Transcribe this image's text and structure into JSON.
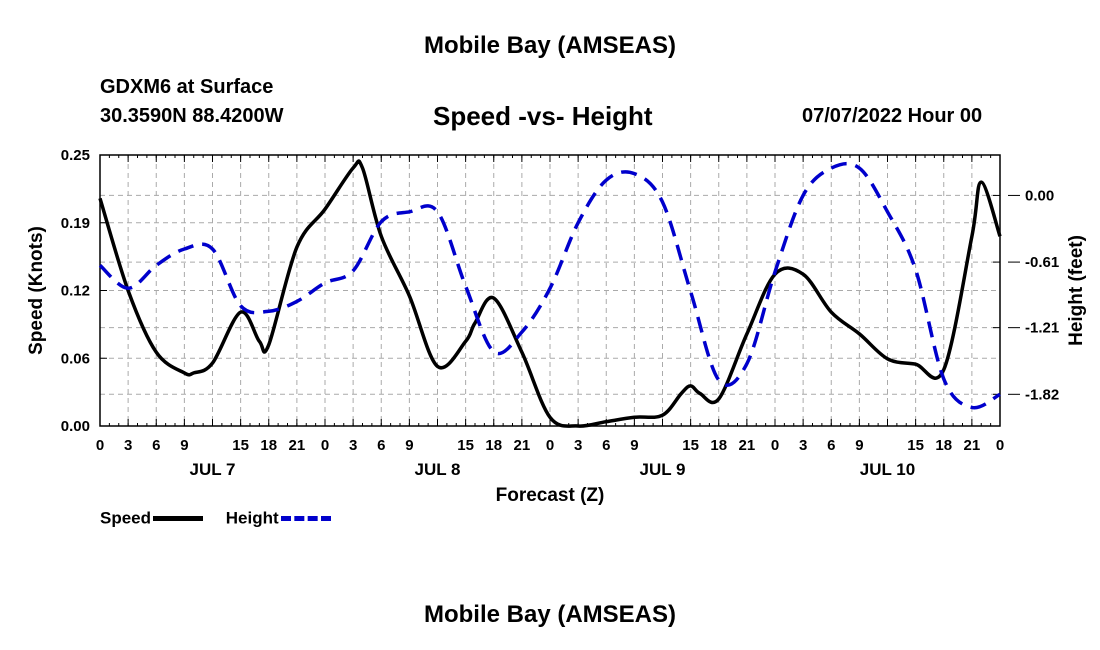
{
  "header": {
    "title": "Mobile Bay (AMSEAS)",
    "station": "GDXM6 at Surface",
    "coords": "30.3590N  88.4200W",
    "subtitle": "Speed -vs- Height",
    "datetime": "07/07/2022 Hour 00",
    "footer_title": "Mobile Bay (AMSEAS)"
  },
  "legend": {
    "items": [
      {
        "label": "Speed",
        "color": "#000000",
        "style": "solid"
      },
      {
        "label": "Height",
        "color": "#0000cc",
        "style": "dashed"
      }
    ]
  },
  "chart_data": {
    "type": "line",
    "title": "Speed -vs- Height",
    "xlabel": "Forecast (Z)",
    "ylabel": "Speed (Knots)",
    "y2label": "Height (feet)",
    "x_unit": "hours from 07/07/2022 00Z",
    "xlim": [
      0,
      96
    ],
    "x_ticks": [
      0,
      3,
      6,
      9,
      12,
      15,
      18,
      21,
      24,
      27,
      30,
      33,
      36,
      39,
      42,
      45,
      48,
      51,
      54,
      57,
      60,
      63,
      66,
      69,
      72,
      75,
      78,
      81,
      84,
      87,
      90,
      93,
      96
    ],
    "x_tick_labels": [
      "0",
      "3",
      "6",
      "9",
      "15",
      "18",
      "21",
      "0",
      "3",
      "6",
      "9",
      "15",
      "18",
      "21",
      "0",
      "3",
      "6",
      "9",
      "15",
      "18",
      "21",
      "0",
      "3",
      "6",
      "9",
      "15",
      "18",
      "21",
      "0"
    ],
    "x_tick_label_positions": [
      0,
      3,
      6,
      9,
      15,
      18,
      21,
      24,
      27,
      30,
      33,
      39,
      42,
      45,
      48,
      51,
      54,
      57,
      63,
      66,
      69,
      72,
      75,
      78,
      81,
      87,
      90,
      93,
      96
    ],
    "day_labels": [
      {
        "label": "JUL 7",
        "x": 12
      },
      {
        "label": "JUL 8",
        "x": 36
      },
      {
        "label": "JUL 9",
        "x": 60
      },
      {
        "label": "JUL 10",
        "x": 84
      }
    ],
    "ylim": [
      0,
      0.25
    ],
    "y_ticks": [
      "0.00",
      "0.06",
      "0.12",
      "0.19",
      "0.25"
    ],
    "y_tick_values": [
      0,
      0.0625,
      0.125,
      0.1875,
      0.25
    ],
    "y2lim": [
      -2.11,
      0.37
    ],
    "y2_ticks": [
      "0.00",
      "-0.61",
      "-1.21",
      "-1.82"
    ],
    "y2_tick_values": [
      0.0,
      -0.61,
      -1.21,
      -1.82
    ],
    "grid": true,
    "series": [
      {
        "name": "Speed",
        "axis": "left",
        "color": "#000000",
        "dash": "solid",
        "x": [
          0,
          3,
          6,
          9,
          10,
          12,
          15,
          17,
          18,
          21,
          24,
          27,
          28,
          30,
          33,
          36,
          39,
          40,
          42,
          45,
          48,
          51,
          54,
          57,
          60,
          62,
          63,
          64,
          66,
          69,
          72,
          75,
          78,
          81,
          84,
          87,
          90,
          93,
          94,
          96
        ],
        "y": [
          0.21,
          0.125,
          0.068,
          0.049,
          0.049,
          0.058,
          0.105,
          0.078,
          0.075,
          0.165,
          0.2,
          0.238,
          0.238,
          0.175,
          0.12,
          0.055,
          0.078,
          0.095,
          0.118,
          0.068,
          0.008,
          0.0,
          0.004,
          0.008,
          0.01,
          0.03,
          0.037,
          0.03,
          0.025,
          0.085,
          0.14,
          0.14,
          0.105,
          0.085,
          0.062,
          0.057,
          0.052,
          0.175,
          0.225,
          0.175
        ]
      },
      {
        "name": "Height",
        "axis": "right",
        "color": "#0000cc",
        "dash": "dashed",
        "x": [
          0,
          3,
          6,
          9,
          12,
          15,
          18,
          21,
          24,
          27,
          30,
          33,
          36,
          39,
          42,
          45,
          48,
          51,
          54,
          57,
          60,
          63,
          66,
          69,
          72,
          75,
          78,
          81,
          84,
          87,
          90,
          93,
          96
        ],
        "y": [
          -0.64,
          -0.85,
          -0.64,
          -0.49,
          -0.49,
          -1.01,
          -1.06,
          -0.97,
          -0.8,
          -0.69,
          -0.24,
          -0.15,
          -0.15,
          -0.83,
          -1.43,
          -1.25,
          -0.85,
          -0.25,
          0.14,
          0.2,
          -0.06,
          -0.88,
          -1.69,
          -1.54,
          -0.7,
          0.0,
          0.25,
          0.25,
          -0.15,
          -0.68,
          -1.68,
          -1.94,
          -1.82
        ]
      }
    ]
  }
}
